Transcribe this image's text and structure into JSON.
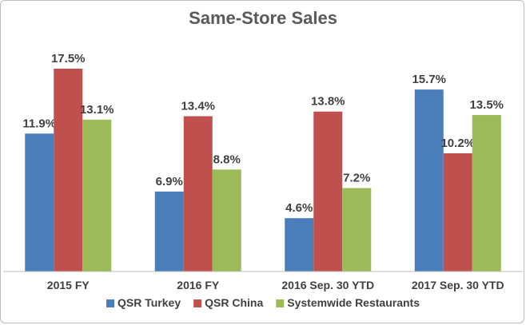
{
  "chart_data": {
    "type": "bar",
    "title": "Same-Store Sales",
    "categories": [
      "2015 FY",
      "2016 FY",
      "2016 Sep. 30 YTD",
      "2017 Sep. 30 YTD"
    ],
    "series": [
      {
        "name": "QSR Turkey",
        "values": [
          11.9,
          6.9,
          4.6,
          15.7
        ],
        "color": "#4a7ebb",
        "labels": [
          "11.9%",
          "6.9%",
          "4.6%",
          "15.7%"
        ]
      },
      {
        "name": "QSR China",
        "values": [
          17.5,
          13.4,
          13.8,
          10.2
        ],
        "color": "#c0504d",
        "labels": [
          "17.5%",
          "13.4%",
          "13.8%",
          "10.2%"
        ]
      },
      {
        "name": "Systemwide Restaurants",
        "values": [
          13.1,
          8.8,
          7.2,
          13.5
        ],
        "color": "#9bbb59",
        "labels": [
          "13.1%",
          "8.8%",
          "7.2%",
          "13.5%"
        ]
      }
    ],
    "xlabel": "",
    "ylabel": "",
    "ylim": [
      0,
      18
    ],
    "grid": false,
    "legend": "bottom"
  }
}
